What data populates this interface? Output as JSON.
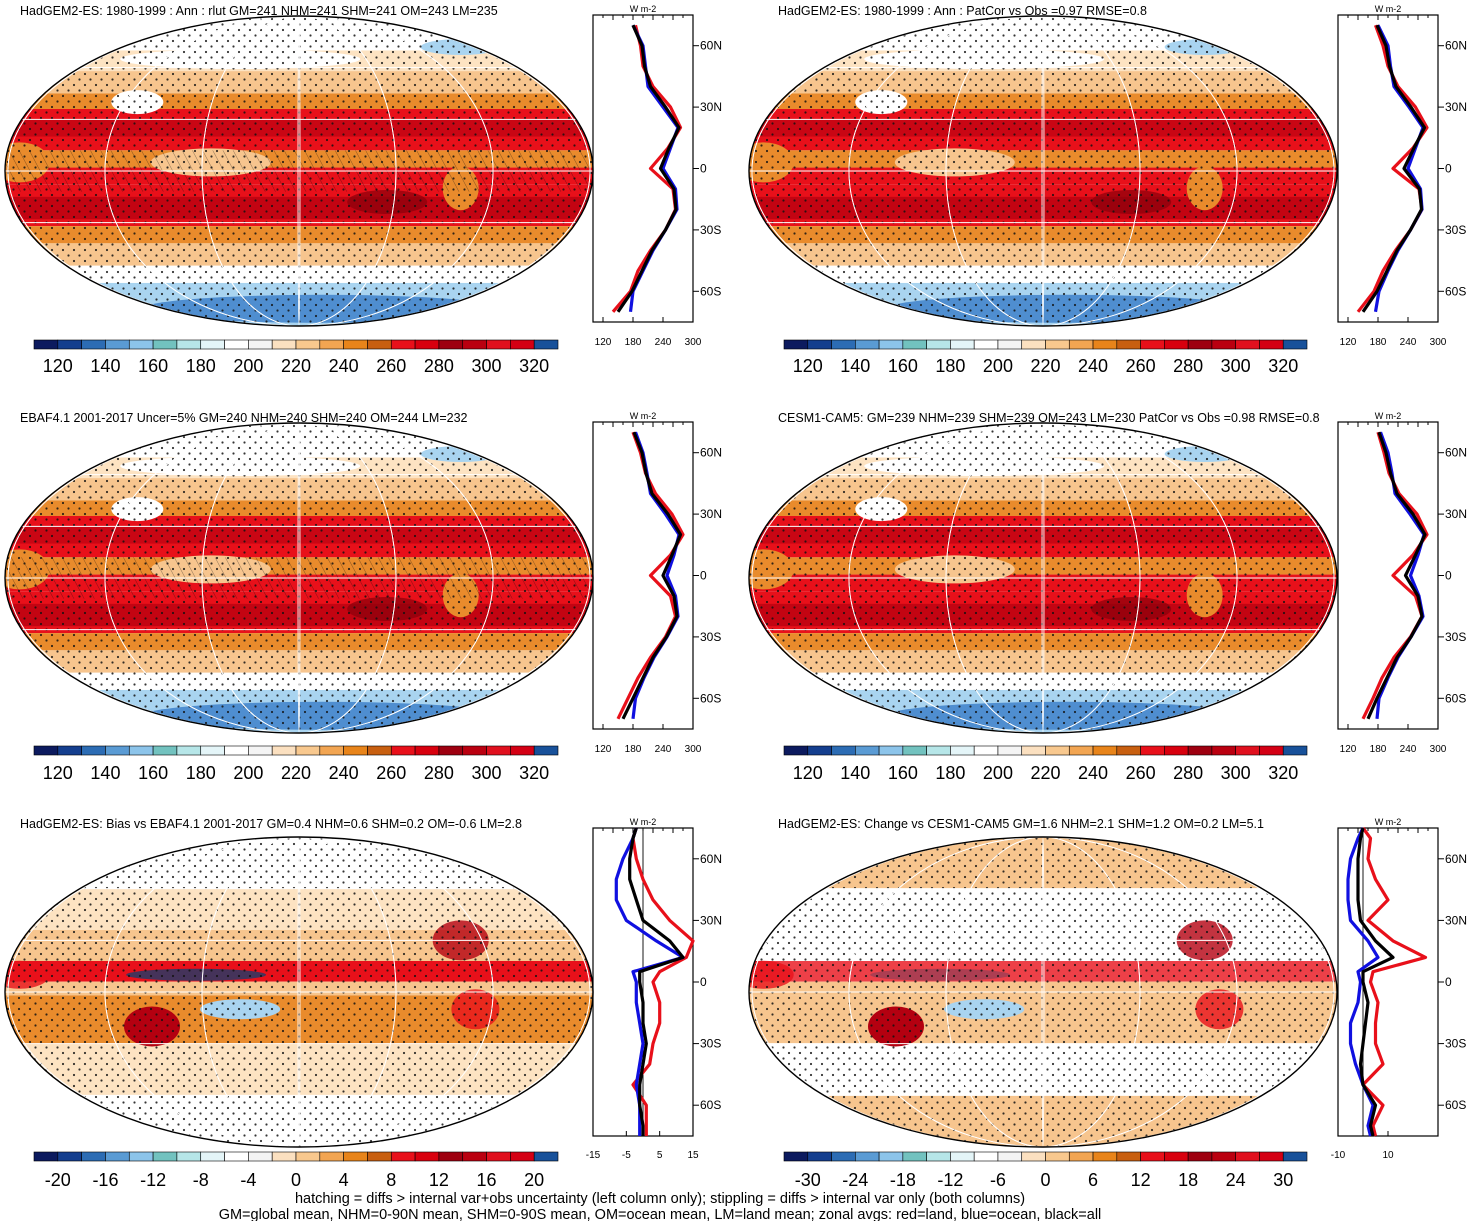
{
  "figure": {
    "footer": [
      "hatching = diffs > internal var+obs uncertainty (left column only); stippling = diffs > internal var only (both columns)",
      "GM=global mean, NHM=0-90N mean, SHM=0-90S mean, OM=ocean mean, LM=land mean; zonal avgs: red=land, blue=ocean, black=all"
    ],
    "units": "W m-2",
    "lat_labels": [
      "60N",
      "30N",
      "0",
      "30S",
      "60S"
    ],
    "zonal_line_colors": {
      "land": "#e8101a",
      "ocean": "#1010e0",
      "all": "#000000"
    }
  },
  "panels": [
    {
      "id": "a",
      "title": "HadGEM2-ES: 1980-1999 : Ann : rlut GM=241 NHM=241 SHM=241 OM=243 LM=235",
      "type": "mean",
      "colorbar": {
        "colors": [
          "#0c1a5e",
          "#143e8e",
          "#2c6cb4",
          "#5a9bd4",
          "#8cc4ea",
          "#72c2bf",
          "#b6e6e8",
          "#e4f5f8",
          "#ffffff",
          "#f4f4f4",
          "#fbe0c0",
          "#f8c88e",
          "#f2a552",
          "#e8841a",
          "#c85f10",
          "#e8101a",
          "#d8000e",
          "#9e0010",
          "#ba0010",
          "#e0101e",
          "#d40014",
          "#18519a"
        ],
        "tick_labels": [
          "120",
          "140",
          "160",
          "180",
          "200",
          "220",
          "240",
          "260",
          "280",
          "300",
          "320"
        ]
      },
      "zonal": {
        "xlim": [
          100,
          300
        ],
        "xticks": [
          "120",
          "180",
          "240",
          "300"
        ],
        "ylim": [
          -75,
          75
        ],
        "zero_line": false,
        "lat": [
          70,
          60,
          50,
          40,
          30,
          20,
          10,
          0,
          -10,
          -20,
          -30,
          -40,
          -50,
          -60,
          -70
        ],
        "land": [
          185,
          195,
          200,
          220,
          255,
          275,
          250,
          215,
          260,
          265,
          245,
          215,
          190,
          175,
          140
        ],
        "ocean": [
          180,
          200,
          205,
          210,
          240,
          270,
          255,
          240,
          265,
          268,
          245,
          220,
          200,
          180,
          175
        ],
        "all": [
          180,
          198,
          203,
          215,
          245,
          272,
          252,
          235,
          262,
          266,
          245,
          218,
          198,
          178,
          150
        ]
      }
    },
    {
      "id": "b",
      "title": "HadGEM2-ES: 1980-1999 : Ann : PatCor vs Obs =0.97 RMSE=0.8",
      "type": "mean",
      "colorbar": {
        "colors": [
          "#0c1a5e",
          "#143e8e",
          "#2c6cb4",
          "#5a9bd4",
          "#8cc4ea",
          "#72c2bf",
          "#b6e6e8",
          "#e4f5f8",
          "#ffffff",
          "#f4f4f4",
          "#fbe0c0",
          "#f8c88e",
          "#f2a552",
          "#e8841a",
          "#c85f10",
          "#e8101a",
          "#d8000e",
          "#9e0010",
          "#ba0010",
          "#e0101e",
          "#d40014",
          "#18519a"
        ],
        "tick_labels": [
          "120",
          "140",
          "160",
          "180",
          "200",
          "220",
          "240",
          "260",
          "280",
          "300",
          "320"
        ]
      },
      "zonal": {
        "xlim": [
          100,
          300
        ],
        "xticks": [
          "120",
          "180",
          "240",
          "300"
        ],
        "ylim": [
          -75,
          75
        ],
        "zero_line": false,
        "lat": [
          70,
          60,
          50,
          40,
          30,
          20,
          10,
          0,
          -10,
          -20,
          -30,
          -40,
          -50,
          -60,
          -70
        ],
        "land": [
          175,
          190,
          200,
          220,
          255,
          278,
          250,
          210,
          262,
          268,
          245,
          215,
          190,
          172,
          140
        ],
        "ocean": [
          180,
          200,
          205,
          212,
          242,
          270,
          255,
          240,
          265,
          268,
          245,
          220,
          200,
          182,
          175
        ],
        "all": [
          178,
          196,
          203,
          216,
          246,
          273,
          252,
          232,
          263,
          267,
          245,
          218,
          198,
          178,
          150
        ]
      }
    },
    {
      "id": "c",
      "title": "EBAF4.1 2001-2017 Uncer=5% GM=240 NHM=240 SHM=240 OM=244 LM=232",
      "type": "mean",
      "colorbar": {
        "colors": [
          "#0c1a5e",
          "#143e8e",
          "#2c6cb4",
          "#5a9bd4",
          "#8cc4ea",
          "#72c2bf",
          "#b6e6e8",
          "#e4f5f8",
          "#ffffff",
          "#f4f4f4",
          "#fbe0c0",
          "#f8c88e",
          "#f2a552",
          "#e8841a",
          "#c85f10",
          "#e8101a",
          "#d8000e",
          "#9e0010",
          "#ba0010",
          "#e0101e",
          "#d40014",
          "#18519a"
        ],
        "tick_labels": [
          "120",
          "140",
          "160",
          "180",
          "200",
          "220",
          "240",
          "260",
          "280",
          "300",
          "320"
        ]
      },
      "zonal": {
        "xlim": [
          100,
          300
        ],
        "xticks": [
          "120",
          "180",
          "240",
          "300"
        ],
        "ylim": [
          -75,
          75
        ],
        "zero_line": false,
        "lat": [
          70,
          60,
          50,
          40,
          30,
          20,
          10,
          0,
          -10,
          -20,
          -30,
          -40,
          -50,
          -60,
          -70
        ],
        "land": [
          180,
          195,
          205,
          225,
          258,
          280,
          255,
          215,
          255,
          265,
          245,
          215,
          190,
          170,
          150
        ],
        "ocean": [
          185,
          200,
          208,
          215,
          245,
          272,
          262,
          248,
          265,
          270,
          248,
          222,
          202,
          185,
          180
        ],
        "all": [
          182,
          198,
          206,
          218,
          250,
          275,
          258,
          240,
          262,
          268,
          247,
          220,
          200,
          180,
          160
        ]
      }
    },
    {
      "id": "d",
      "title": "CESM1-CAM5: GM=239 NHM=239 SHM=239 OM=243 LM=230 PatCor vs Obs =0.98 RMSE=0.8",
      "type": "mean",
      "colorbar": {
        "colors": [
          "#0c1a5e",
          "#143e8e",
          "#2c6cb4",
          "#5a9bd4",
          "#8cc4ea",
          "#72c2bf",
          "#b6e6e8",
          "#e4f5f8",
          "#ffffff",
          "#f4f4f4",
          "#fbe0c0",
          "#f8c88e",
          "#f2a552",
          "#e8841a",
          "#c85f10",
          "#e8101a",
          "#d8000e",
          "#9e0010",
          "#ba0010",
          "#e0101e",
          "#d40014",
          "#18519a"
        ],
        "tick_labels": [
          "120",
          "140",
          "160",
          "180",
          "200",
          "220",
          "240",
          "260",
          "280",
          "300",
          "320"
        ]
      },
      "zonal": {
        "xlim": [
          100,
          300
        ],
        "xticks": [
          "120",
          "180",
          "240",
          "300"
        ],
        "ylim": [
          -75,
          75
        ],
        "zero_line": false,
        "lat": [
          70,
          60,
          50,
          40,
          30,
          20,
          10,
          0,
          -10,
          -20,
          -30,
          -40,
          -50,
          -60,
          -70
        ],
        "land": [
          180,
          192,
          202,
          222,
          258,
          278,
          250,
          210,
          255,
          268,
          245,
          212,
          188,
          170,
          150
        ],
        "ocean": [
          185,
          200,
          208,
          214,
          244,
          272,
          260,
          245,
          262,
          270,
          246,
          220,
          200,
          182,
          178
        ],
        "all": [
          182,
          196,
          205,
          218,
          250,
          274,
          255,
          235,
          260,
          268,
          246,
          218,
          198,
          178,
          160
        ]
      }
    },
    {
      "id": "e",
      "title": "HadGEM2-ES: Bias vs EBAF4.1 2001-2017 GM=0.4 NHM=0.6 SHM=0.2 OM=-0.6 LM=2.8",
      "type": "bias",
      "colorbar": {
        "colors": [
          "#0c1a5e",
          "#143e8e",
          "#2c6cb4",
          "#5a9bd4",
          "#8cc4ea",
          "#72c2bf",
          "#b6e6e8",
          "#e4f5f8",
          "#ffffff",
          "#f4f4f4",
          "#fbe0c0",
          "#f8c88e",
          "#f2a552",
          "#e8841a",
          "#c85f10",
          "#e8101a",
          "#d8000e",
          "#9e0010",
          "#ba0010",
          "#e0101e",
          "#d40014",
          "#18519a"
        ],
        "tick_labels": [
          "-20",
          "-16",
          "-12",
          "-8",
          "-4",
          "0",
          "4",
          "8",
          "12",
          "16",
          "20"
        ]
      },
      "zonal": {
        "xlim": [
          -15,
          15
        ],
        "xticks": [
          "-15",
          "-5",
          "5",
          "15"
        ],
        "ylim": [
          -75,
          75
        ],
        "zero_line": true,
        "lat": [
          75,
          70,
          60,
          50,
          40,
          30,
          20,
          12,
          5,
          0,
          -10,
          -20,
          -30,
          -40,
          -50,
          -60,
          -70,
          -75
        ],
        "land": [
          -2,
          -3,
          -2,
          0,
          3,
          8,
          15,
          13,
          5,
          3,
          5,
          5,
          3,
          2,
          -3,
          1,
          1,
          1
        ],
        "ocean": [
          -2,
          -3,
          -6,
          -8,
          -8,
          -5,
          4,
          12,
          -3,
          -2,
          -2,
          -1,
          0,
          -1,
          -2,
          -1,
          -1,
          -1
        ],
        "all": [
          -2,
          -3,
          -4,
          -4,
          -2,
          0,
          8,
          12,
          -1,
          -1,
          0,
          0,
          1,
          0,
          -1,
          -1,
          0,
          0
        ]
      }
    },
    {
      "id": "f",
      "title": "HadGEM2-ES: Change vs CESM1-CAM5 GM=1.6 NHM=2.1 SHM=1.2 OM=0.2 LM=5.1",
      "type": "change",
      "colorbar": {
        "colors": [
          "#0c1a5e",
          "#143e8e",
          "#2c6cb4",
          "#5a9bd4",
          "#8cc4ea",
          "#72c2bf",
          "#b6e6e8",
          "#e4f5f8",
          "#ffffff",
          "#f4f4f4",
          "#fbe0c0",
          "#f8c88e",
          "#f2a552",
          "#e8841a",
          "#c85f10",
          "#e8101a",
          "#d8000e",
          "#9e0010",
          "#ba0010",
          "#e0101e",
          "#d40014",
          "#18519a"
        ],
        "tick_labels": [
          "-30",
          "-24",
          "-18",
          "-12",
          "-6",
          "0",
          "6",
          "12",
          "18",
          "24",
          "30"
        ]
      },
      "zonal": {
        "xlim": [
          -10,
          30
        ],
        "xticks": [
          "-10",
          "10"
        ],
        "ylim": [
          -75,
          75
        ],
        "zero_line": true,
        "lat": [
          75,
          70,
          60,
          50,
          40,
          30,
          20,
          12,
          5,
          0,
          -10,
          -20,
          -30,
          -40,
          -50,
          -60,
          -70,
          -75
        ],
        "land": [
          0,
          3,
          2,
          5,
          10,
          2,
          12,
          25,
          4,
          3,
          6,
          5,
          5,
          8,
          0,
          8,
          4,
          5
        ],
        "ocean": [
          0,
          -2,
          -5,
          -6,
          -6,
          -5,
          2,
          6,
          -2,
          -1,
          -2,
          -5,
          -5,
          -3,
          0,
          4,
          2,
          3
        ],
        "all": [
          0,
          -1,
          -2,
          -2,
          -2,
          -1,
          5,
          12,
          0,
          0,
          2,
          1,
          0,
          -1,
          0,
          5,
          3,
          4
        ]
      }
    }
  ]
}
